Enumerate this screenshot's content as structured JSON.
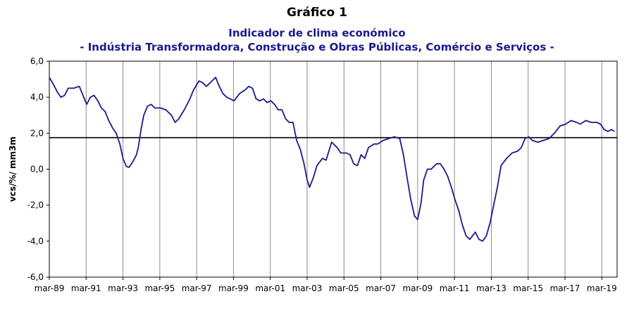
{
  "chart_data": {
    "type": "line",
    "title": "Gráfico 1",
    "subtitle": "Indicador de clima económico",
    "subtitle2": "- Indústria Transformadora, Construção e Obras Públicas, Comércio e Serviços -",
    "xlabel": "",
    "ylabel": "vcs/%/ mm3m",
    "ylim": [
      -6,
      6
    ],
    "yticks": [
      6,
      4,
      2,
      0,
      -2,
      -4,
      -6
    ],
    "ytick_labels": [
      "6,0",
      "4,0",
      "2,0",
      "0,0",
      "-2,0",
      "-4,0",
      "-6,0"
    ],
    "xlim": [
      1989.17,
      2020.0
    ],
    "xticks": [
      1989.17,
      1991.17,
      1993.17,
      1995.17,
      1997.17,
      1999.17,
      2001.17,
      2003.17,
      2005.17,
      2007.17,
      2009.17,
      2011.17,
      2013.17,
      2015.17,
      2017.17,
      2019.17
    ],
    "xtick_labels": [
      "mar-89",
      "mar-91",
      "mar-93",
      "mar-95",
      "mar-97",
      "mar-99",
      "mar-01",
      "mar-03",
      "mar-05",
      "mar-07",
      "mar-09",
      "mar-11",
      "mar-13",
      "mar-15",
      "mar-17",
      "mar-19"
    ],
    "vertical_grid": true,
    "reference_line": 1.75,
    "series": [
      {
        "name": "",
        "color": "#1a1a8c",
        "points": [
          [
            1989.17,
            5.1
          ],
          [
            1989.4,
            4.7
          ],
          [
            1989.6,
            4.3
          ],
          [
            1989.8,
            4.0
          ],
          [
            1990.0,
            4.1
          ],
          [
            1990.2,
            4.5
          ],
          [
            1990.5,
            4.5
          ],
          [
            1990.8,
            4.6
          ],
          [
            1991.0,
            4.1
          ],
          [
            1991.2,
            3.6
          ],
          [
            1991.4,
            4.0
          ],
          [
            1991.6,
            4.1
          ],
          [
            1991.8,
            3.8
          ],
          [
            1992.0,
            3.4
          ],
          [
            1992.2,
            3.2
          ],
          [
            1992.4,
            2.7
          ],
          [
            1992.6,
            2.3
          ],
          [
            1992.8,
            2.0
          ],
          [
            1993.0,
            1.4
          ],
          [
            1993.17,
            0.6
          ],
          [
            1993.35,
            0.15
          ],
          [
            1993.5,
            0.1
          ],
          [
            1993.7,
            0.4
          ],
          [
            1993.9,
            0.8
          ],
          [
            1994.0,
            1.2
          ],
          [
            1994.15,
            2.2
          ],
          [
            1994.3,
            3.0
          ],
          [
            1994.5,
            3.5
          ],
          [
            1994.7,
            3.6
          ],
          [
            1994.9,
            3.4
          ],
          [
            1995.2,
            3.4
          ],
          [
            1995.5,
            3.3
          ],
          [
            1995.8,
            3.0
          ],
          [
            1996.0,
            2.6
          ],
          [
            1996.2,
            2.8
          ],
          [
            1996.5,
            3.3
          ],
          [
            1996.8,
            3.9
          ],
          [
            1997.0,
            4.4
          ],
          [
            1997.3,
            4.9
          ],
          [
            1997.5,
            4.8
          ],
          [
            1997.7,
            4.6
          ],
          [
            1998.0,
            4.9
          ],
          [
            1998.2,
            5.1
          ],
          [
            1998.4,
            4.6
          ],
          [
            1998.6,
            4.2
          ],
          [
            1998.8,
            4.0
          ],
          [
            1999.0,
            3.9
          ],
          [
            1999.2,
            3.8
          ],
          [
            1999.5,
            4.2
          ],
          [
            1999.8,
            4.4
          ],
          [
            2000.0,
            4.6
          ],
          [
            2000.2,
            4.5
          ],
          [
            2000.4,
            3.9
          ],
          [
            2000.6,
            3.8
          ],
          [
            2000.8,
            3.9
          ],
          [
            2001.0,
            3.7
          ],
          [
            2001.2,
            3.8
          ],
          [
            2001.4,
            3.6
          ],
          [
            2001.6,
            3.3
          ],
          [
            2001.8,
            3.3
          ],
          [
            2002.0,
            2.8
          ],
          [
            2002.2,
            2.6
          ],
          [
            2002.4,
            2.6
          ],
          [
            2002.6,
            1.6
          ],
          [
            2002.8,
            1.1
          ],
          [
            2003.0,
            0.3
          ],
          [
            2003.17,
            -0.6
          ],
          [
            2003.3,
            -1.0
          ],
          [
            2003.5,
            -0.5
          ],
          [
            2003.7,
            0.2
          ],
          [
            2004.0,
            0.6
          ],
          [
            2004.2,
            0.5
          ],
          [
            2004.5,
            1.5
          ],
          [
            2004.8,
            1.2
          ],
          [
            2005.0,
            0.9
          ],
          [
            2005.3,
            0.9
          ],
          [
            2005.5,
            0.8
          ],
          [
            2005.7,
            0.3
          ],
          [
            2005.9,
            0.2
          ],
          [
            2006.1,
            0.8
          ],
          [
            2006.3,
            0.6
          ],
          [
            2006.5,
            1.2
          ],
          [
            2006.8,
            1.4
          ],
          [
            2007.0,
            1.4
          ],
          [
            2007.3,
            1.6
          ],
          [
            2007.6,
            1.7
          ],
          [
            2007.9,
            1.8
          ],
          [
            2008.2,
            1.7
          ],
          [
            2008.4,
            0.8
          ],
          [
            2008.6,
            -0.5
          ],
          [
            2008.8,
            -1.7
          ],
          [
            2009.0,
            -2.6
          ],
          [
            2009.17,
            -2.8
          ],
          [
            2009.35,
            -1.9
          ],
          [
            2009.5,
            -0.6
          ],
          [
            2009.7,
            0.0
          ],
          [
            2009.9,
            0.0
          ],
          [
            2010.2,
            0.3
          ],
          [
            2010.4,
            0.3
          ],
          [
            2010.6,
            0.0
          ],
          [
            2010.8,
            -0.4
          ],
          [
            2011.0,
            -1.0
          ],
          [
            2011.2,
            -1.7
          ],
          [
            2011.4,
            -2.3
          ],
          [
            2011.6,
            -3.1
          ],
          [
            2011.8,
            -3.7
          ],
          [
            2012.0,
            -3.9
          ],
          [
            2012.3,
            -3.5
          ],
          [
            2012.5,
            -3.9
          ],
          [
            2012.7,
            -4.0
          ],
          [
            2012.9,
            -3.7
          ],
          [
            2013.1,
            -3.0
          ],
          [
            2013.3,
            -2.0
          ],
          [
            2013.5,
            -1.0
          ],
          [
            2013.7,
            0.2
          ],
          [
            2014.0,
            0.6
          ],
          [
            2014.3,
            0.9
          ],
          [
            2014.6,
            1.0
          ],
          [
            2014.8,
            1.2
          ],
          [
            2015.0,
            1.7
          ],
          [
            2015.2,
            1.8
          ],
          [
            2015.4,
            1.6
          ],
          [
            2015.7,
            1.5
          ],
          [
            2016.0,
            1.6
          ],
          [
            2016.3,
            1.7
          ],
          [
            2016.6,
            2.0
          ],
          [
            2016.9,
            2.4
          ],
          [
            2017.2,
            2.5
          ],
          [
            2017.5,
            2.7
          ],
          [
            2017.8,
            2.6
          ],
          [
            2018.0,
            2.5
          ],
          [
            2018.3,
            2.7
          ],
          [
            2018.6,
            2.6
          ],
          [
            2018.9,
            2.6
          ],
          [
            2019.1,
            2.5
          ],
          [
            2019.3,
            2.2
          ],
          [
            2019.5,
            2.1
          ],
          [
            2019.7,
            2.2
          ],
          [
            2019.85,
            2.1
          ]
        ]
      }
    ]
  }
}
